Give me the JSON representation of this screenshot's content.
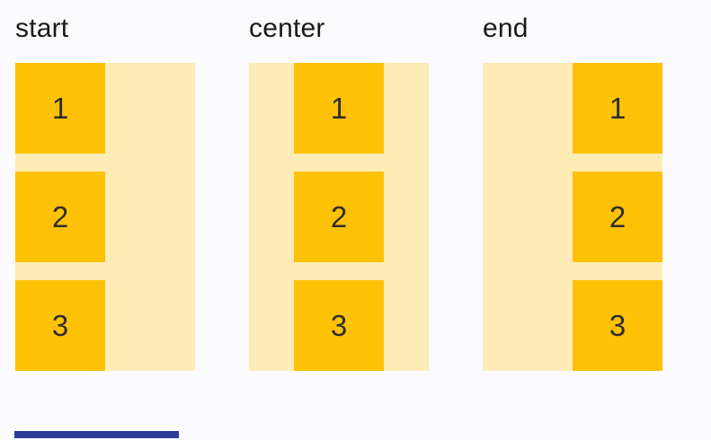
{
  "page": {
    "background_color": "#FBFBFE"
  },
  "demos": [
    {
      "label": "start",
      "alignment": "start",
      "items": [
        "1",
        "2",
        "3"
      ]
    },
    {
      "label": "center",
      "alignment": "center",
      "items": [
        "1",
        "2",
        "3"
      ]
    },
    {
      "label": "end",
      "alignment": "end",
      "items": [
        "1",
        "2",
        "3"
      ]
    }
  ],
  "colors": {
    "item": "#FDC106",
    "container": "#FDECB5",
    "label_text": "#1A1A1A",
    "item_text": "#2E2E2E",
    "scrollbar": "#2E3A97"
  }
}
